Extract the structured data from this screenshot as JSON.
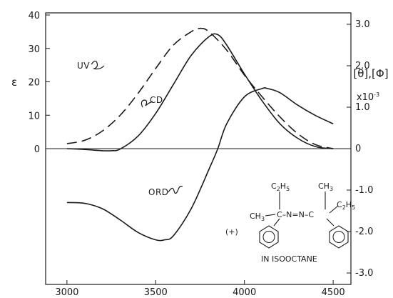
{
  "chart_data": {
    "type": "line",
    "title": "",
    "xlabel": "",
    "xlim": [
      2880,
      4600
    ],
    "x_ticks": [
      3000,
      3500,
      4000,
      4500
    ],
    "left_axis": {
      "label": "ε",
      "ylim": [
        -40,
        40
      ],
      "ticks": [
        0,
        10,
        20,
        30,
        40
      ]
    },
    "right_axis": {
      "label": "[θ],[Φ]",
      "multiplier": "x10",
      "multiplier_exp": "-3",
      "ylim": [
        -3.2,
        3.2
      ],
      "ticks": [
        3.0,
        2.0,
        1.0,
        0,
        -1.0,
        -2.0,
        -3.0
      ],
      "tick_labels": [
        "3.0",
        "2.0",
        "1.0",
        "0",
        "-1.0",
        "-2.0",
        "-3.0"
      ]
    },
    "series": [
      {
        "name": "UV",
        "axis": "left",
        "style": "dashed",
        "x": [
          3000,
          3100,
          3200,
          3300,
          3400,
          3500,
          3600,
          3700,
          3750,
          3800,
          3900,
          4000,
          4100,
          4200,
          4300,
          4400,
          4500
        ],
        "y": [
          1.5,
          2.5,
          5.3,
          10,
          16.5,
          24,
          31,
          35,
          36,
          35,
          29.5,
          22,
          15.5,
          9.5,
          4.5,
          1.2,
          0
        ]
      },
      {
        "name": "CD",
        "axis": "right",
        "style": "solid",
        "x": [
          3000,
          3100,
          3200,
          3250,
          3300,
          3400,
          3500,
          3600,
          3700,
          3800,
          3850,
          3900,
          4000,
          4100,
          4200,
          4300,
          4400,
          4500
        ],
        "y": [
          0.0,
          -0.02,
          -0.05,
          -0.05,
          -0.01,
          0.3,
          0.85,
          1.55,
          2.25,
          2.7,
          2.75,
          2.5,
          1.8,
          1.15,
          0.6,
          0.25,
          0.05,
          0.0
        ]
      },
      {
        "name": "ORD",
        "axis": "right",
        "style": "solid",
        "x": [
          3000,
          3100,
          3200,
          3300,
          3400,
          3500,
          3550,
          3600,
          3700,
          3800,
          3850,
          3900,
          4000,
          4100,
          4130,
          4200,
          4300,
          4400,
          4500
        ],
        "y": [
          -1.3,
          -1.32,
          -1.45,
          -1.72,
          -2.02,
          -2.2,
          -2.2,
          -2.1,
          -1.45,
          -0.5,
          0.0,
          0.6,
          1.25,
          1.45,
          1.45,
          1.35,
          1.05,
          0.8,
          0.6
        ]
      }
    ],
    "annotations": {
      "uv": "UV",
      "cd": "CD",
      "ord": "ORD"
    },
    "structure": {
      "prefix": "(+)",
      "ch3_left": "CH",
      "ch3_left_sub": "3",
      "c2h5_top_c": "C",
      "c2h5_top_2": "2",
      "c2h5_top_h": "H",
      "c2h5_top_5": "5",
      "ch3_top_right": "CH",
      "ch3_top_right_sub": "3",
      "c2h5_right_c": "C",
      "c2h5_right_2": "2",
      "c2h5_right_h": "H",
      "c2h5_right_5": "5",
      "azo": "C–N=N–C",
      "solvent": "IN ISOOCTANE"
    }
  }
}
